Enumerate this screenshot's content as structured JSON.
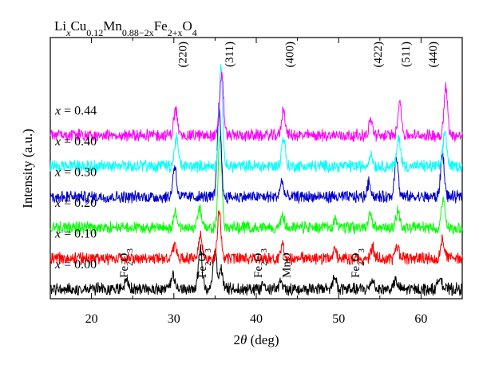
{
  "chart_data": {
    "type": "line",
    "title": "Li_x Cu_0.12 Mn_0.88−2x Fe_2+x O_4",
    "title_parts": {
      "li": "Li",
      "li_sub": "x",
      "cu": "Cu",
      "cu_sub": "0.12",
      "mn": "Mn",
      "mn_sub": "0.88−2x",
      "fe": "Fe",
      "fe_sub": "2+x",
      "o": "O",
      "o_sub": "4"
    },
    "xlabel": "2θ (deg)",
    "xlabel_parts": {
      "num": "2",
      "sym": "θ",
      "unit": " (deg)"
    },
    "ylabel": "Intensity (a.u.)",
    "xlim": [
      15,
      65
    ],
    "x_ticks": [
      20,
      30,
      40,
      50,
      60
    ],
    "y_ticks": "none",
    "grid": false,
    "legend": "none",
    "series": [
      {
        "name": "x = 0.00",
        "x_label": "x",
        "value_label": " = 0.00",
        "color": "#000000",
        "baseline": 0,
        "peaks": [
          [
            24.2,
            0.3
          ],
          [
            29.9,
            0.45
          ],
          [
            33.2,
            1.55
          ],
          [
            35.0,
            1.35
          ],
          [
            35.7,
            0.7
          ],
          [
            40.9,
            0.3
          ],
          [
            43.0,
            0.25
          ],
          [
            49.5,
            0.45
          ],
          [
            54.1,
            0.35
          ],
          [
            56.9,
            0.3
          ],
          [
            62.3,
            0.5
          ]
        ]
      },
      {
        "name": "x = 0.10",
        "x_label": "x",
        "value_label": " = 0.10",
        "color": "#ff0000",
        "baseline": 1,
        "peaks": [
          [
            30.1,
            0.45
          ],
          [
            33.2,
            0.9
          ],
          [
            35.5,
            1.7
          ],
          [
            43.2,
            0.45
          ],
          [
            49.5,
            0.3
          ],
          [
            54.1,
            0.4
          ],
          [
            57.1,
            0.45
          ],
          [
            62.6,
            0.75
          ]
        ]
      },
      {
        "name": "x = 0.20",
        "x_label": "x",
        "value_label": " = 0.20",
        "color": "#00ff00",
        "baseline": 2,
        "peaks": [
          [
            30.2,
            0.6
          ],
          [
            33.1,
            0.7
          ],
          [
            35.6,
            3.4
          ],
          [
            43.2,
            0.45
          ],
          [
            49.6,
            0.3
          ],
          [
            53.8,
            0.45
          ],
          [
            57.2,
            0.65
          ],
          [
            62.7,
            1.05
          ]
        ]
      },
      {
        "name": "x = 0.30",
        "x_label": "x",
        "value_label": " = 0.30",
        "color": "#0000cc",
        "baseline": 3,
        "peaks": [
          [
            30.1,
            1.15
          ],
          [
            35.5,
            3.4
          ],
          [
            43.1,
            0.55
          ],
          [
            53.7,
            0.55
          ],
          [
            57.0,
            1.5
          ],
          [
            62.6,
            1.6
          ]
        ]
      },
      {
        "name": "x = 0.40",
        "x_label": "x",
        "value_label": " = 0.40",
        "color": "#00ffff",
        "baseline": 4,
        "peaks": [
          [
            30.3,
            1.05
          ],
          [
            35.7,
            3.6
          ],
          [
            43.3,
            1.05
          ],
          [
            53.9,
            0.45
          ],
          [
            57.3,
            1.05
          ],
          [
            62.9,
            1.3
          ]
        ]
      },
      {
        "name": "x = 0.44",
        "x_label": "x",
        "value_label": " = 0.44",
        "color": "#ff00ff",
        "baseline": 5,
        "peaks": [
          [
            30.2,
            0.95
          ],
          [
            35.8,
            2.3
          ],
          [
            43.3,
            0.95
          ],
          [
            53.9,
            0.55
          ],
          [
            57.4,
            1.25
          ],
          [
            63.0,
            1.75
          ]
        ]
      }
    ],
    "hkl_labels": [
      {
        "text": "(220)",
        "x": 31.5
      },
      {
        "text": "(311)",
        "x": 37.2
      },
      {
        "text": "(400)",
        "x": 44.5
      },
      {
        "text": "(422)",
        "x": 55.2
      },
      {
        "text": "(511)",
        "x": 58.6
      },
      {
        "text": "(440)",
        "x": 61.9
      }
    ],
    "impurity_labels": [
      {
        "formula": "Fe",
        "sub": "2",
        "tail": "O",
        "tail_sub": "3",
        "x": 24.4
      },
      {
        "formula": "Fe",
        "sub": "2",
        "tail": "O",
        "tail_sub": "3",
        "x": 33.9
      },
      {
        "formula": "Fe",
        "sub": "2",
        "tail": "O",
        "tail_sub": "3",
        "x": 40.7
      },
      {
        "formula": "MnO",
        "sub": "",
        "tail": "",
        "tail_sub": "",
        "x": 44.1
      },
      {
        "formula": "Fe",
        "sub": "2",
        "tail": "O",
        "tail_sub": "3",
        "x": 52.5
      }
    ]
  }
}
